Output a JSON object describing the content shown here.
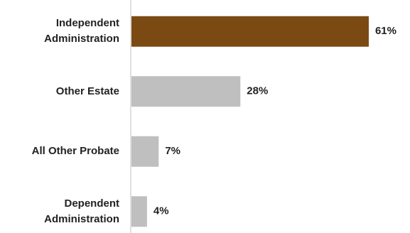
{
  "chart_data": {
    "type": "bar",
    "orientation": "horizontal",
    "categories": [
      "Independent Administration",
      "Other Estate",
      "All Other Probate",
      "Dependent Administration"
    ],
    "values": [
      61,
      28,
      7,
      4
    ],
    "value_labels": [
      "61%",
      "28%",
      "7%",
      "4%"
    ],
    "colors": [
      "#7b4a12",
      "#bfbfbf",
      "#bfbfbf",
      "#bfbfbf"
    ]
  }
}
